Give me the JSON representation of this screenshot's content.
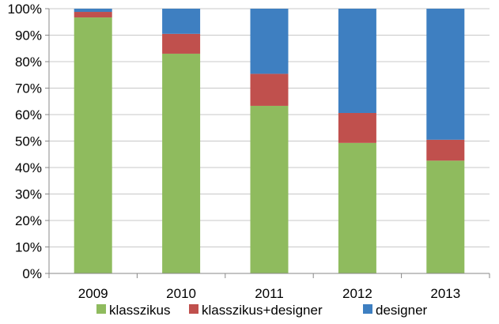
{
  "chart_data": {
    "type": "bar",
    "stacked": true,
    "percent": true,
    "categories": [
      "2009",
      "2010",
      "2011",
      "2012",
      "2013"
    ],
    "series": [
      {
        "name": "klasszikus",
        "color": "#8fbb5e",
        "values": [
          96.7,
          83,
          63.3,
          49.3,
          42.6
        ]
      },
      {
        "name": "klasszikus+designer",
        "color": "#c0504d",
        "values": [
          2.1,
          7.5,
          12.1,
          11.3,
          7.9
        ]
      },
      {
        "name": "designer",
        "color": "#3e7fc1",
        "values": [
          1.2,
          9.5,
          24.6,
          39.4,
          49.5
        ]
      }
    ],
    "ylim": [
      0,
      100
    ],
    "yticks": [
      "0%",
      "10%",
      "20%",
      "30%",
      "40%",
      "50%",
      "60%",
      "70%",
      "80%",
      "90%",
      "100%"
    ],
    "grid": true,
    "legend": "bottom",
    "title": "",
    "xlabel": "",
    "ylabel": ""
  }
}
